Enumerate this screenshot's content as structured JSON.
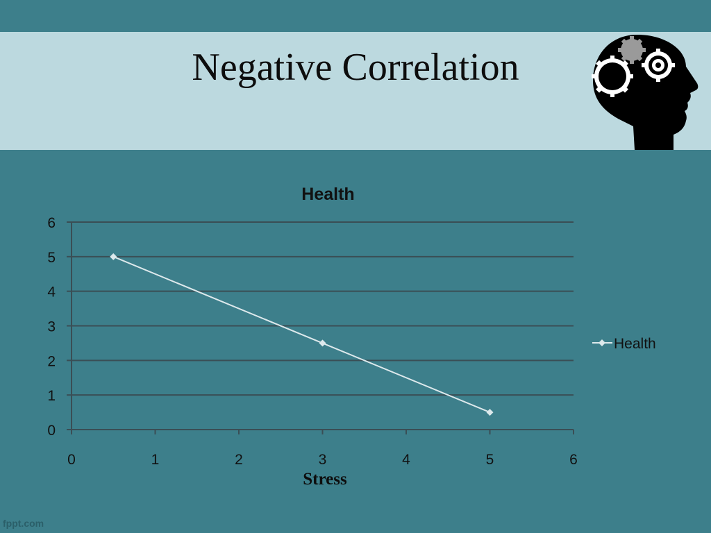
{
  "slide": {
    "title": "Negative Correlation",
    "watermark": "fppt.com",
    "logo_icon": "head-with-gears-icon"
  },
  "colors": {
    "background": "#3d7f8b",
    "title_band": "#bcd9df",
    "series_line": "#dde9ec",
    "grid": "#3a4e55"
  },
  "chart_data": {
    "type": "scatter",
    "title": "Health",
    "xlabel": "Stress",
    "ylabel": "",
    "xlim": [
      0,
      6
    ],
    "ylim": [
      0,
      6
    ],
    "x_ticks": [
      0,
      1,
      2,
      3,
      4,
      5,
      6
    ],
    "y_ticks": [
      0,
      1,
      2,
      3,
      4,
      5,
      6
    ],
    "grid": true,
    "legend_position": "right",
    "series": [
      {
        "name": "Health",
        "x": [
          0.5,
          3,
          5
        ],
        "y": [
          5,
          2.5,
          0.5
        ],
        "line": true,
        "marker": "diamond"
      }
    ]
  }
}
